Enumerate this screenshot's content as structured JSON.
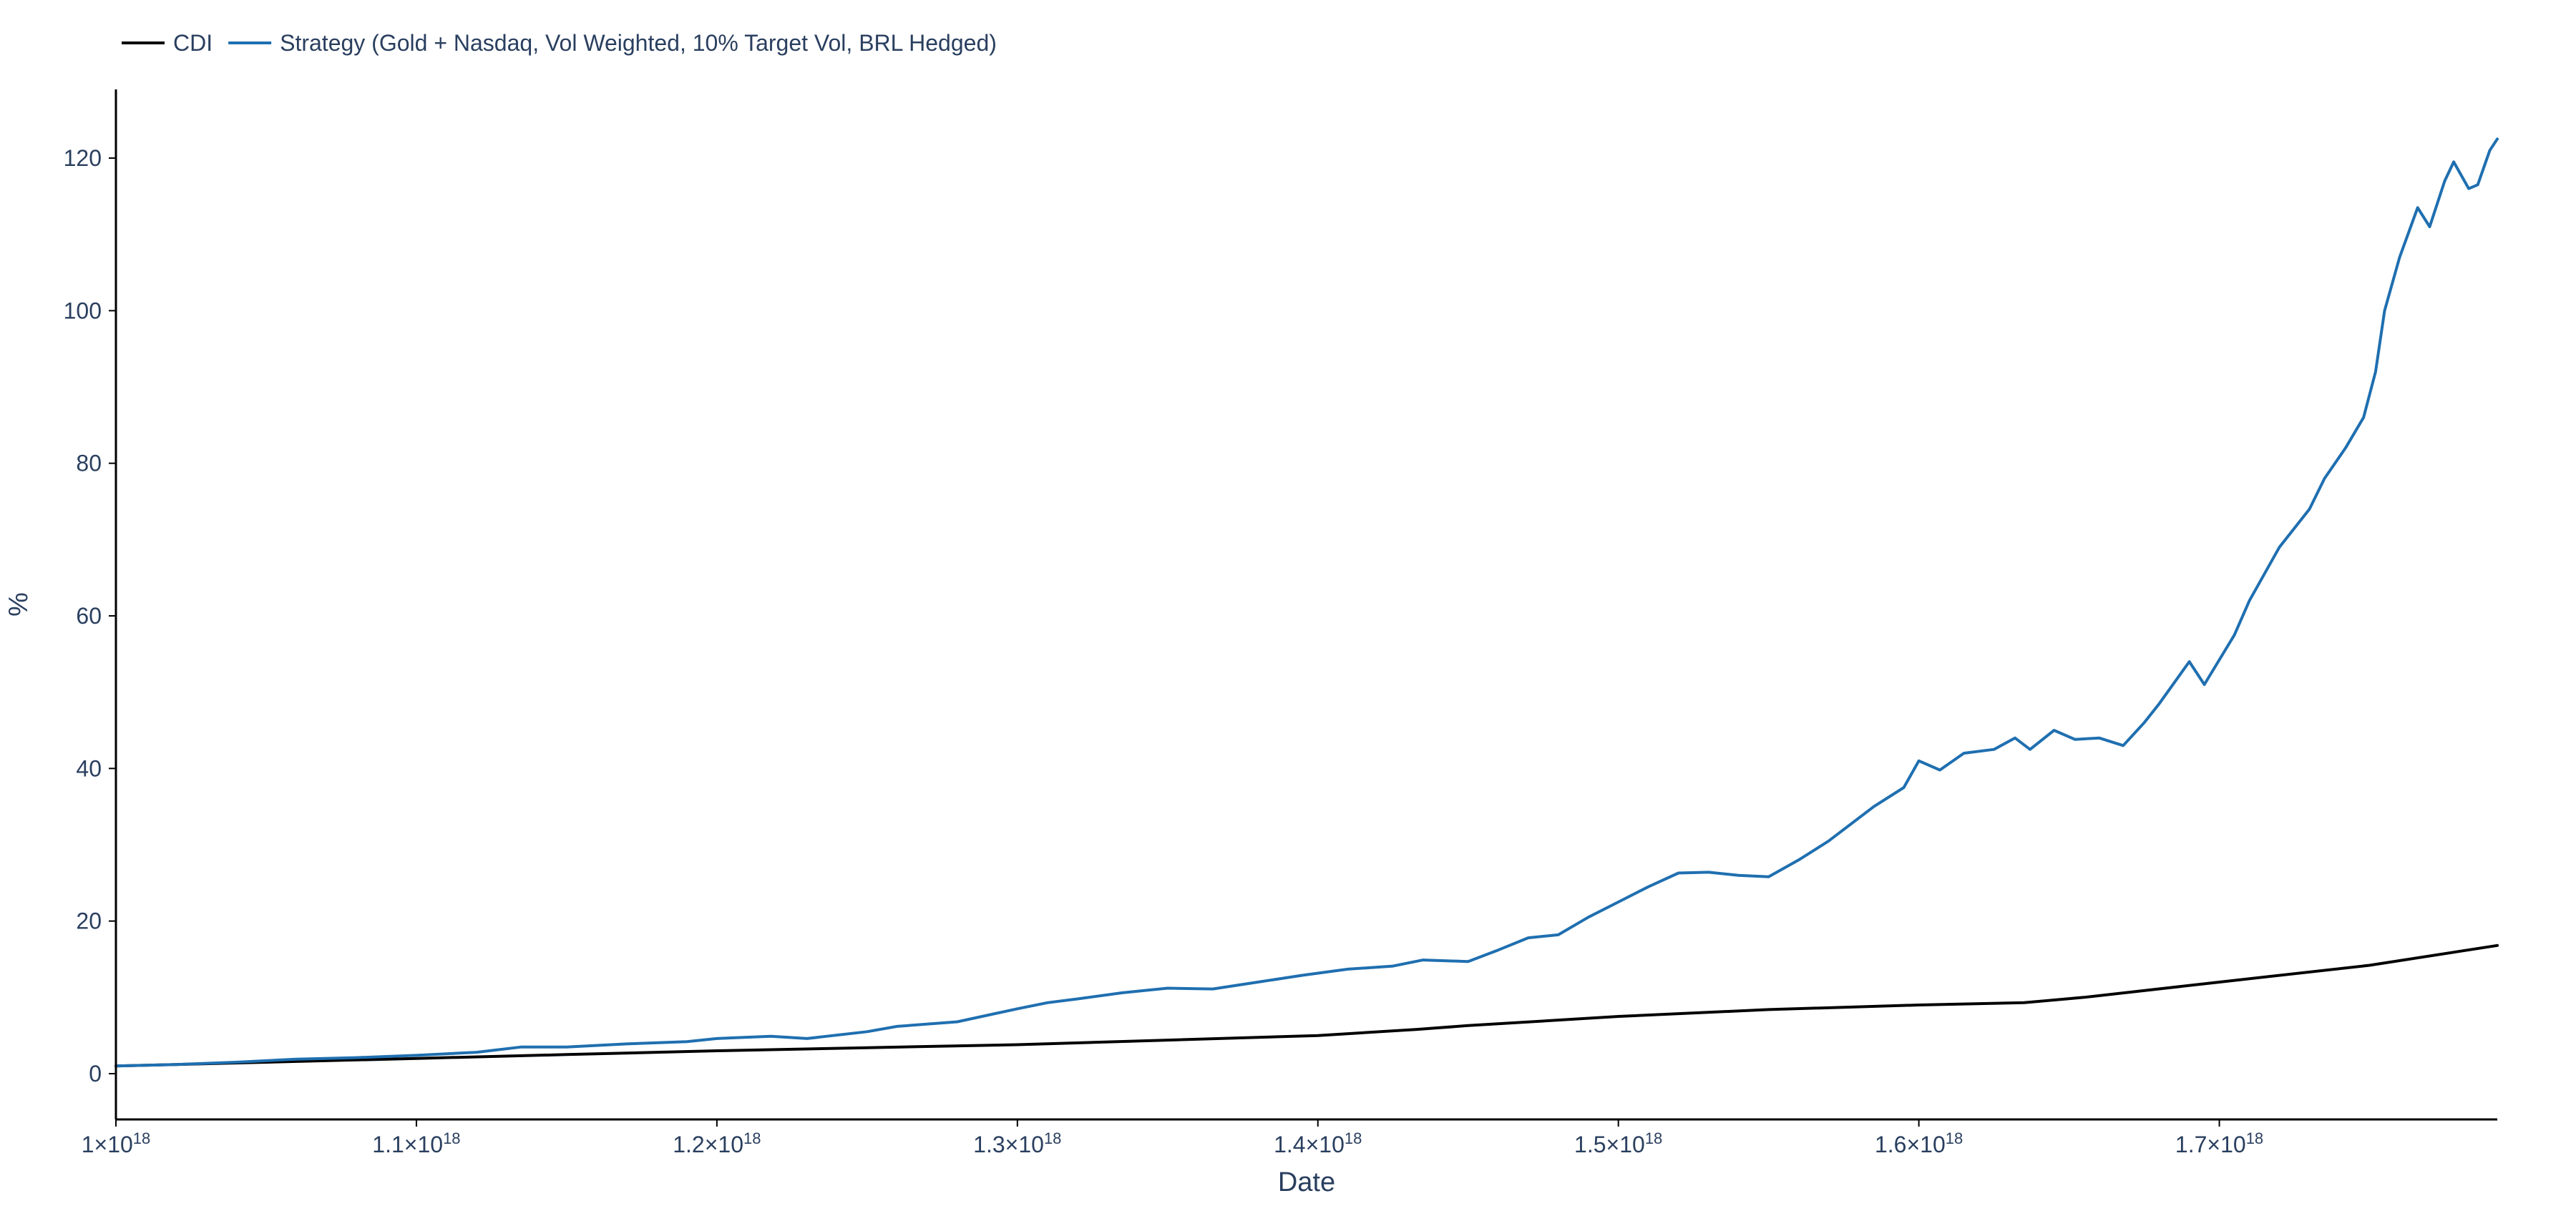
{
  "chart_data": {
    "type": "line",
    "xlabel": "Date",
    "ylabel": "%",
    "xlim": [
      1e+18,
      1.7925e+18
    ],
    "ylim": [
      -6,
      129
    ],
    "grid": false,
    "legend_position": "top-left",
    "x_ticks": [
      {
        "value": 1e+18,
        "mantissa": "1",
        "exponent": "18"
      },
      {
        "value": 1.1e+18,
        "mantissa": "1.1",
        "exponent": "18"
      },
      {
        "value": 1.2e+18,
        "mantissa": "1.2",
        "exponent": "18"
      },
      {
        "value": 1.3e+18,
        "mantissa": "1.3",
        "exponent": "18"
      },
      {
        "value": 1.4e+18,
        "mantissa": "1.4",
        "exponent": "18"
      },
      {
        "value": 1.5e+18,
        "mantissa": "1.5",
        "exponent": "18"
      },
      {
        "value": 1.6e+18,
        "mantissa": "1.6",
        "exponent": "18"
      },
      {
        "value": 1.7e+18,
        "mantissa": "1.7",
        "exponent": "18"
      }
    ],
    "y_ticks": [
      0,
      20,
      40,
      60,
      80,
      100,
      120
    ],
    "series": [
      {
        "name": "CDI",
        "color": "#000000",
        "x": [
          1e+18,
          1.05e+18,
          1.1e+18,
          1.15e+18,
          1.2e+18,
          1.25e+18,
          1.3e+18,
          1.35e+18,
          1.4e+18,
          1.433e+18,
          1.45e+18,
          1.5e+18,
          1.55e+18,
          1.6e+18,
          1.635e+18,
          1.655e+18,
          1.7e+18,
          1.75e+18,
          1.7925e+18
        ],
        "y": [
          1.0,
          1.5,
          2.0,
          2.5,
          3.0,
          3.4,
          3.8,
          4.4,
          5.0,
          5.8,
          6.3,
          7.5,
          8.4,
          9.0,
          9.3,
          10.0,
          12.0,
          14.2,
          16.8
        ]
      },
      {
        "name": "Strategy (Gold + Nasdaq, Vol Weighted, 10% Target Vol, BRL Hedged)",
        "color": "#1f6fb0",
        "x": [
          1e+18,
          1.02e+18,
          1.04e+18,
          1.06e+18,
          1.08e+18,
          1.1e+18,
          1.12e+18,
          1.135e+18,
          1.15e+18,
          1.17e+18,
          1.19e+18,
          1.2e+18,
          1.218e+18,
          1.23e+18,
          1.25e+18,
          1.26e+18,
          1.28e+18,
          1.3e+18,
          1.31e+18,
          1.32e+18,
          1.335e+18,
          1.35e+18,
          1.365e+18,
          1.38e+18,
          1.395e+18,
          1.41e+18,
          1.425e+18,
          1.435e+18,
          1.45e+18,
          1.46e+18,
          1.47e+18,
          1.48e+18,
          1.49e+18,
          1.5e+18,
          1.51e+18,
          1.52e+18,
          1.53e+18,
          1.54e+18,
          1.55e+18,
          1.56e+18,
          1.57e+18,
          1.585e+18,
          1.595e+18,
          1.6e+18,
          1.607e+18,
          1.615e+18,
          1.625e+18,
          1.632e+18,
          1.637e+18,
          1.645e+18,
          1.652e+18,
          1.66e+18,
          1.668e+18,
          1.675e+18,
          1.68e+18,
          1.69e+18,
          1.695e+18,
          1.705e+18,
          1.71e+18,
          1.72e+18,
          1.73e+18,
          1.735e+18,
          1.742e+18,
          1.748e+18,
          1.752e+18,
          1.755e+18,
          1.76e+18,
          1.766e+18,
          1.77e+18,
          1.775e+18,
          1.778e+18,
          1.783e+18,
          1.786e+18,
          1.79e+18,
          1.7925e+18
        ],
        "y": [
          1.0,
          1.2,
          1.5,
          1.9,
          2.1,
          2.4,
          2.8,
          3.5,
          3.5,
          3.9,
          4.2,
          4.6,
          4.9,
          4.6,
          5.5,
          6.2,
          6.8,
          8.5,
          9.3,
          9.8,
          10.6,
          11.2,
          11.1,
          12.0,
          12.9,
          13.7,
          14.1,
          14.9,
          14.7,
          16.2,
          17.8,
          18.2,
          20.5,
          22.5,
          24.5,
          26.3,
          26.4,
          26.0,
          25.8,
          28.0,
          30.5,
          35.0,
          37.5,
          41.0,
          39.8,
          42.0,
          42.5,
          44.0,
          42.5,
          45.0,
          43.8,
          44.0,
          43.0,
          46.0,
          48.5,
          54.0,
          51.0,
          57.5,
          62.0,
          69.0,
          74.0,
          78.0,
          82.0,
          86.0,
          92.0,
          100.0,
          107.0,
          113.5,
          111.0,
          117.0,
          119.5,
          116.0,
          116.5,
          121.0,
          122.5
        ]
      }
    ]
  }
}
